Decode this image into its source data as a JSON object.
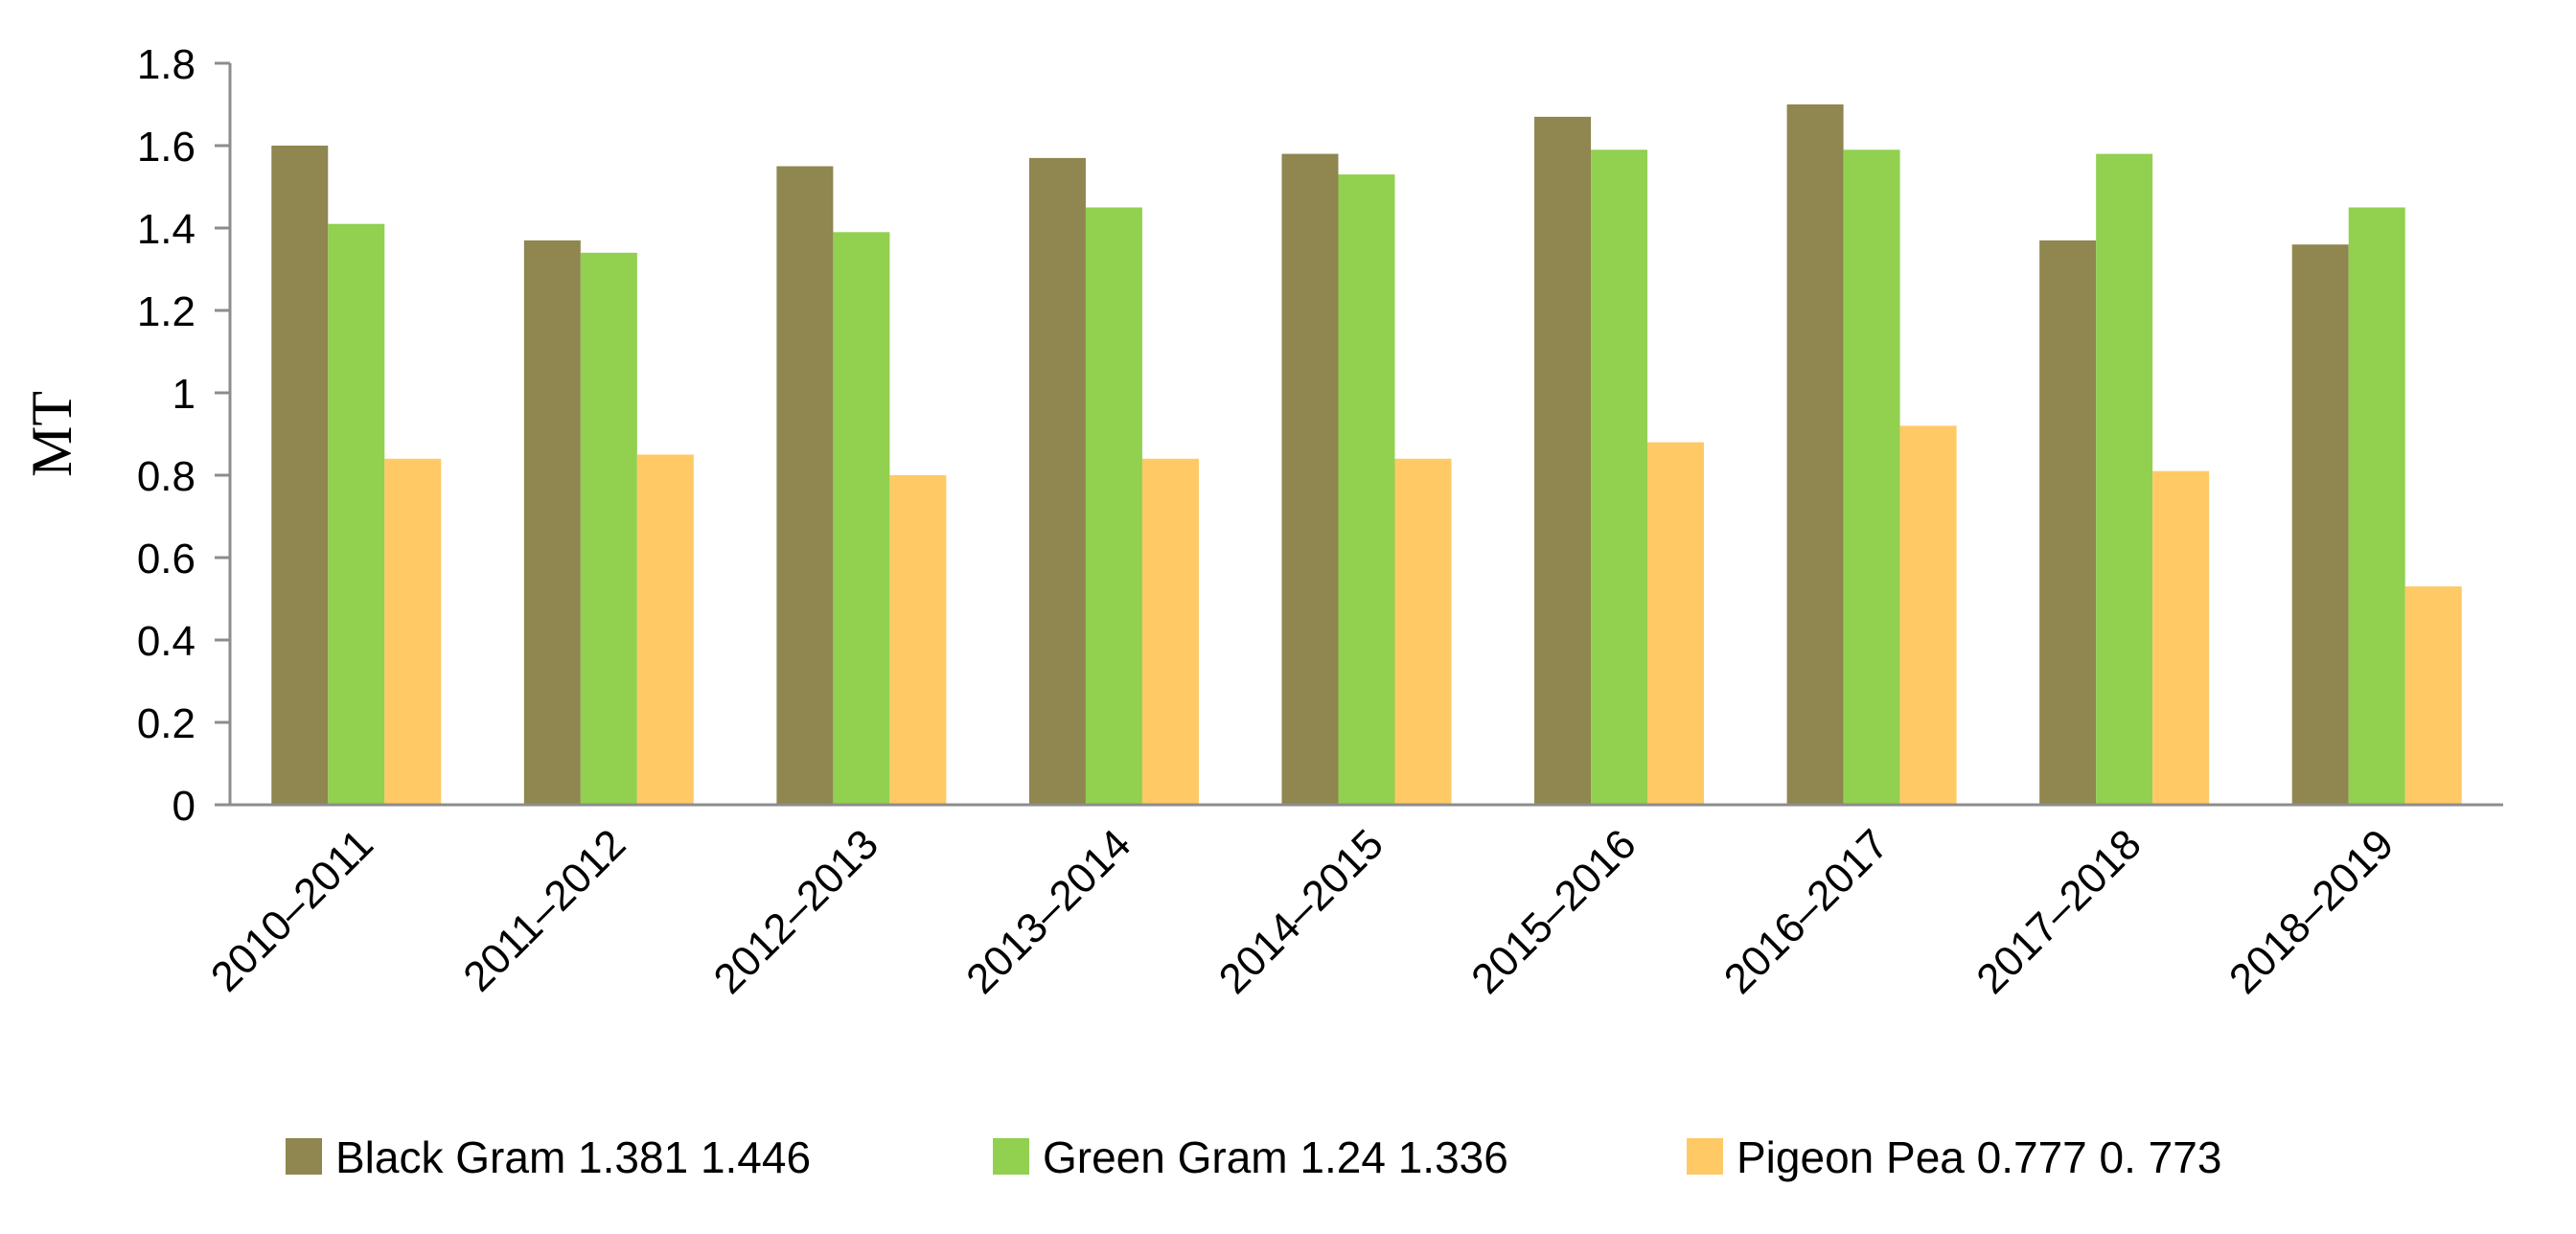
{
  "chart_data": {
    "type": "bar",
    "title": "",
    "xlabel": "",
    "ylabel": "MT",
    "ylim": [
      0,
      1.8
    ],
    "yticks": [
      "0",
      "0.2",
      "0.4",
      "0.6",
      "0.8",
      "1",
      "1.2",
      "1.4",
      "1.6",
      "1.8"
    ],
    "categories": [
      "2010–2011",
      "2011–2012",
      "2012–2013",
      "2013–2014",
      "2014–2015",
      "2015–2016",
      "2016–2017",
      "2017–2018",
      "2018–2019"
    ],
    "series": [
      {
        "name": "Black Gram 1.381 1.446",
        "color": "#8f8650",
        "values": [
          1.6,
          1.37,
          1.55,
          1.57,
          1.58,
          1.67,
          1.7,
          1.37,
          1.36
        ]
      },
      {
        "name": "Green Gram 1.24 1.336",
        "color": "#92d050",
        "values": [
          1.41,
          1.34,
          1.39,
          1.45,
          1.53,
          1.59,
          1.59,
          1.58,
          1.45
        ]
      },
      {
        "name": "Pigeon Pea 0.777 0. 773",
        "color": "#ffc966",
        "values": [
          0.84,
          0.85,
          0.8,
          0.84,
          0.84,
          0.88,
          0.92,
          0.81,
          0.53
        ]
      }
    ],
    "grid": false,
    "legend_position": "bottom"
  }
}
